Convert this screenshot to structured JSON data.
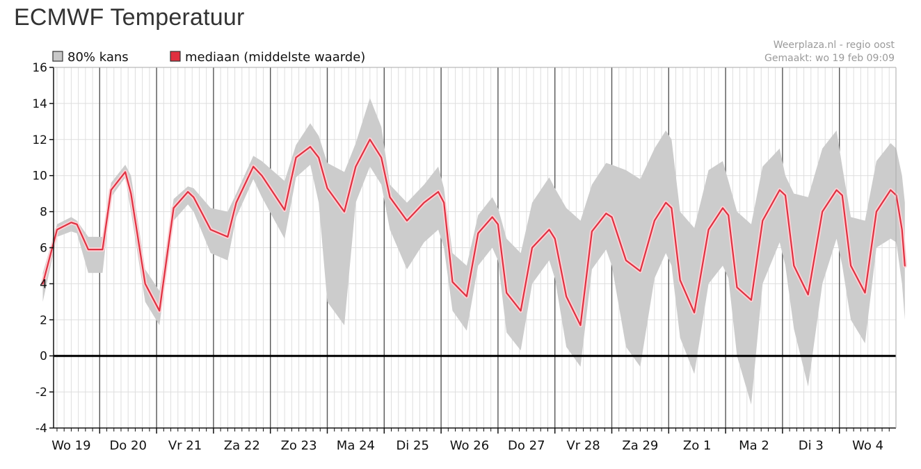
{
  "page": {
    "title": "ECMWF Temperatuur"
  },
  "credit": {
    "source": "Weerplaza.nl - regio oost",
    "made": "Gemaakt: wo 19 feb 09:09"
  },
  "chart_data": {
    "type": "area",
    "title": "ECMWF Temperatuur",
    "xlabel": "",
    "ylabel": "",
    "ylim": [
      -4,
      16
    ],
    "yticks": [
      -4,
      -2,
      0,
      2,
      4,
      6,
      8,
      10,
      12,
      14,
      16
    ],
    "xlim": [
      0,
      15
    ],
    "day_labels": [
      "Wo 19",
      "Do 20",
      "Vr 21",
      "Za 22",
      "Zo 23",
      "Ma 24",
      "Di 25",
      "Wo 26",
      "Do 27",
      "Vr 28",
      "Za 29",
      "Zo 1",
      "Ma 2",
      "Di 3",
      "Wo 4"
    ],
    "grid": true,
    "legend_position": "top-left",
    "legend": [
      {
        "label": "80% kans",
        "color": "#c8c8c8"
      },
      {
        "label": "mediaan (middelste waarde)",
        "color": "#e03040"
      }
    ],
    "colors": {
      "band": "#cccccc",
      "median": "#e03040",
      "median_halo": "#fbd0d4",
      "zero_line": "#000000"
    },
    "series": [
      {
        "name": "mediaan (middelste waarde)",
        "points": [
          [
            0.0,
            4.0
          ],
          [
            0.25,
            7.0
          ],
          [
            0.5,
            7.4
          ],
          [
            0.6,
            7.3
          ],
          [
            0.8,
            5.9
          ],
          [
            1.05,
            5.9
          ],
          [
            1.2,
            9.2
          ],
          [
            1.45,
            10.2
          ],
          [
            1.55,
            9.0
          ],
          [
            1.8,
            4.0
          ],
          [
            2.05,
            2.5
          ],
          [
            2.3,
            8.2
          ],
          [
            2.55,
            9.1
          ],
          [
            2.65,
            8.8
          ],
          [
            2.95,
            7.0
          ],
          [
            3.25,
            6.6
          ],
          [
            3.4,
            8.5
          ],
          [
            3.7,
            10.5
          ],
          [
            3.85,
            10.0
          ],
          [
            4.25,
            8.1
          ],
          [
            4.45,
            11.0
          ],
          [
            4.7,
            11.6
          ],
          [
            4.85,
            11.0
          ],
          [
            5.0,
            9.3
          ],
          [
            5.3,
            8.0
          ],
          [
            5.5,
            10.5
          ],
          [
            5.75,
            12.0
          ],
          [
            5.95,
            11.0
          ],
          [
            6.1,
            8.8
          ],
          [
            6.4,
            7.5
          ],
          [
            6.7,
            8.5
          ],
          [
            6.95,
            9.1
          ],
          [
            7.05,
            8.5
          ],
          [
            7.2,
            4.1
          ],
          [
            7.45,
            3.3
          ],
          [
            7.65,
            6.8
          ],
          [
            7.9,
            7.7
          ],
          [
            8.0,
            7.3
          ],
          [
            8.15,
            3.5
          ],
          [
            8.4,
            2.5
          ],
          [
            8.6,
            6.0
          ],
          [
            8.9,
            7.0
          ],
          [
            9.0,
            6.5
          ],
          [
            9.2,
            3.3
          ],
          [
            9.45,
            1.7
          ],
          [
            9.65,
            6.9
          ],
          [
            9.9,
            7.9
          ],
          [
            10.0,
            7.7
          ],
          [
            10.25,
            5.3
          ],
          [
            10.5,
            4.7
          ],
          [
            10.75,
            7.5
          ],
          [
            10.95,
            8.5
          ],
          [
            11.05,
            8.2
          ],
          [
            11.2,
            4.2
          ],
          [
            11.45,
            2.4
          ],
          [
            11.7,
            7.0
          ],
          [
            11.95,
            8.2
          ],
          [
            12.05,
            7.8
          ],
          [
            12.2,
            3.8
          ],
          [
            12.45,
            3.1
          ],
          [
            12.65,
            7.5
          ],
          [
            12.95,
            9.2
          ],
          [
            13.05,
            8.9
          ],
          [
            13.2,
            5.0
          ],
          [
            13.45,
            3.4
          ],
          [
            13.7,
            8.0
          ],
          [
            13.95,
            9.2
          ],
          [
            14.05,
            8.9
          ],
          [
            14.2,
            5.0
          ],
          [
            14.45,
            3.5
          ],
          [
            14.65,
            8.0
          ],
          [
            14.9,
            9.2
          ],
          [
            15.0,
            8.9
          ],
          [
            15.1,
            7.0
          ],
          [
            15.15,
            5.0
          ]
        ]
      },
      {
        "name": "80% kans",
        "upper": [
          [
            0.0,
            4.6
          ],
          [
            0.25,
            7.3
          ],
          [
            0.5,
            7.7
          ],
          [
            0.6,
            7.5
          ],
          [
            0.8,
            6.6
          ],
          [
            1.05,
            6.6
          ],
          [
            1.2,
            9.6
          ],
          [
            1.45,
            10.6
          ],
          [
            1.55,
            10.0
          ],
          [
            1.8,
            4.8
          ],
          [
            2.05,
            3.6
          ],
          [
            2.3,
            8.7
          ],
          [
            2.55,
            9.4
          ],
          [
            2.65,
            9.3
          ],
          [
            2.95,
            8.2
          ],
          [
            3.25,
            8.0
          ],
          [
            3.4,
            9.0
          ],
          [
            3.7,
            11.1
          ],
          [
            3.85,
            10.8
          ],
          [
            4.25,
            9.7
          ],
          [
            4.45,
            11.7
          ],
          [
            4.7,
            12.9
          ],
          [
            4.85,
            12.2
          ],
          [
            5.0,
            10.7
          ],
          [
            5.3,
            10.2
          ],
          [
            5.5,
            11.8
          ],
          [
            5.75,
            14.3
          ],
          [
            5.95,
            12.7
          ],
          [
            6.1,
            9.5
          ],
          [
            6.4,
            8.5
          ],
          [
            6.7,
            9.5
          ],
          [
            6.95,
            10.5
          ],
          [
            7.05,
            9.3
          ],
          [
            7.2,
            5.7
          ],
          [
            7.45,
            5.0
          ],
          [
            7.65,
            7.8
          ],
          [
            7.9,
            8.8
          ],
          [
            8.0,
            8.2
          ],
          [
            8.15,
            6.5
          ],
          [
            8.4,
            5.7
          ],
          [
            8.6,
            8.5
          ],
          [
            8.9,
            9.9
          ],
          [
            9.0,
            9.3
          ],
          [
            9.2,
            8.2
          ],
          [
            9.45,
            7.5
          ],
          [
            9.65,
            9.5
          ],
          [
            9.9,
            10.7
          ],
          [
            10.0,
            10.6
          ],
          [
            10.25,
            10.3
          ],
          [
            10.5,
            9.8
          ],
          [
            10.75,
            11.5
          ],
          [
            10.95,
            12.5
          ],
          [
            11.05,
            12.0
          ],
          [
            11.2,
            8.0
          ],
          [
            11.45,
            7.1
          ],
          [
            11.7,
            10.3
          ],
          [
            11.95,
            10.8
          ],
          [
            12.05,
            9.7
          ],
          [
            12.2,
            8.0
          ],
          [
            12.45,
            7.3
          ],
          [
            12.65,
            10.5
          ],
          [
            12.95,
            11.5
          ],
          [
            13.05,
            10.0
          ],
          [
            13.2,
            9.0
          ],
          [
            13.45,
            8.8
          ],
          [
            13.7,
            11.5
          ],
          [
            13.95,
            12.5
          ],
          [
            14.05,
            10.5
          ],
          [
            14.2,
            7.7
          ],
          [
            14.45,
            7.5
          ],
          [
            14.65,
            10.8
          ],
          [
            14.9,
            11.8
          ],
          [
            15.0,
            11.5
          ],
          [
            15.1,
            10.0
          ],
          [
            15.15,
            8.5
          ]
        ],
        "lower": [
          [
            0.0,
            3.0
          ],
          [
            0.25,
            6.6
          ],
          [
            0.5,
            6.9
          ],
          [
            0.6,
            6.8
          ],
          [
            0.8,
            4.6
          ],
          [
            1.05,
            4.6
          ],
          [
            1.2,
            8.8
          ],
          [
            1.45,
            9.9
          ],
          [
            1.55,
            8.0
          ],
          [
            1.8,
            3.0
          ],
          [
            2.05,
            1.7
          ],
          [
            2.3,
            7.5
          ],
          [
            2.55,
            8.4
          ],
          [
            2.65,
            8.0
          ],
          [
            2.95,
            5.7
          ],
          [
            3.25,
            5.3
          ],
          [
            3.4,
            7.7
          ],
          [
            3.7,
            9.8
          ],
          [
            3.85,
            8.8
          ],
          [
            4.25,
            6.5
          ],
          [
            4.45,
            9.9
          ],
          [
            4.7,
            10.6
          ],
          [
            4.85,
            8.5
          ],
          [
            5.0,
            3.0
          ],
          [
            5.3,
            1.7
          ],
          [
            5.5,
            8.5
          ],
          [
            5.75,
            10.5
          ],
          [
            5.95,
            9.5
          ],
          [
            6.1,
            7.0
          ],
          [
            6.4,
            4.8
          ],
          [
            6.7,
            6.3
          ],
          [
            6.95,
            7.0
          ],
          [
            7.05,
            6.0
          ],
          [
            7.2,
            2.5
          ],
          [
            7.45,
            1.4
          ],
          [
            7.65,
            5.0
          ],
          [
            7.9,
            6.0
          ],
          [
            8.0,
            5.3
          ],
          [
            8.15,
            1.3
          ],
          [
            8.4,
            0.3
          ],
          [
            8.6,
            4.0
          ],
          [
            8.9,
            5.3
          ],
          [
            9.0,
            4.3
          ],
          [
            9.2,
            0.5
          ],
          [
            9.45,
            -0.6
          ],
          [
            9.65,
            4.8
          ],
          [
            9.9,
            5.9
          ],
          [
            10.0,
            5.0
          ],
          [
            10.25,
            0.5
          ],
          [
            10.5,
            -0.6
          ],
          [
            10.75,
            4.3
          ],
          [
            10.95,
            5.7
          ],
          [
            11.05,
            5.0
          ],
          [
            11.2,
            1.0
          ],
          [
            11.45,
            -1.0
          ],
          [
            11.7,
            4.0
          ],
          [
            11.95,
            5.0
          ],
          [
            12.05,
            4.3
          ],
          [
            12.2,
            0.0
          ],
          [
            12.45,
            -2.7
          ],
          [
            12.65,
            4.0
          ],
          [
            12.95,
            6.3
          ],
          [
            13.05,
            5.0
          ],
          [
            13.2,
            1.5
          ],
          [
            13.45,
            -1.7
          ],
          [
            13.7,
            4.0
          ],
          [
            13.95,
            6.5
          ],
          [
            14.05,
            5.0
          ],
          [
            14.2,
            2.0
          ],
          [
            14.45,
            0.7
          ],
          [
            14.65,
            6.0
          ],
          [
            14.9,
            6.5
          ],
          [
            15.0,
            6.3
          ],
          [
            15.1,
            4.0
          ],
          [
            15.15,
            2.0
          ]
        ]
      }
    ]
  }
}
